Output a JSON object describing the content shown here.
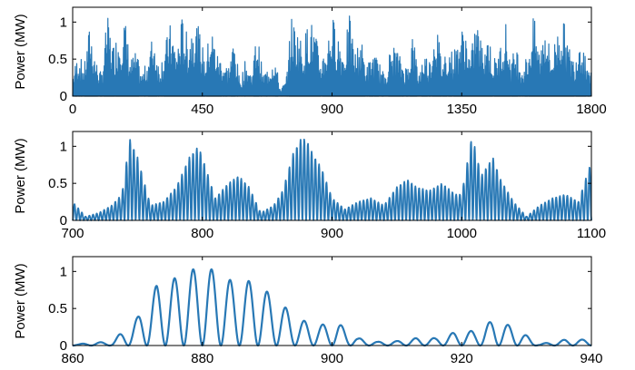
{
  "colors": {
    "series": "#2878b5",
    "axes": "#000000"
  },
  "chart_data": [
    {
      "type": "line",
      "title": "",
      "xlabel": "",
      "ylabel": "Power (MW)",
      "xlim": [
        0,
        1800
      ],
      "ylim": [
        0,
        1.2
      ],
      "xticks": [
        0,
        450,
        900,
        1350,
        1800
      ],
      "yticks": [
        0,
        0.5,
        1
      ],
      "xtick_labels": [
        "0",
        "450",
        "900",
        "1350",
        "1800"
      ],
      "ytick_labels": [
        "0",
        "0.5",
        "1"
      ],
      "grid": false,
      "series": [
        {
          "values_description_omitted": true,
          "x": [
            0,
            20,
            40,
            60,
            80,
            100,
            120,
            140,
            160,
            180,
            200,
            220,
            240,
            260,
            280,
            300,
            320,
            340,
            360,
            380,
            400,
            420,
            440,
            460,
            480,
            500,
            520,
            540,
            560,
            580,
            600,
            620,
            640,
            660,
            680,
            700,
            720,
            740,
            760,
            780,
            800,
            820,
            840,
            860,
            880,
            900,
            920,
            940,
            960,
            980,
            1000,
            1020,
            1040,
            1060,
            1080,
            1100,
            1120,
            1140,
            1160,
            1180,
            1200,
            1220,
            1240,
            1260,
            1280,
            1300,
            1320,
            1340,
            1360,
            1380,
            1400,
            1420,
            1440,
            1460,
            1480,
            1500,
            1520,
            1540,
            1560,
            1580,
            1600,
            1620,
            1640,
            1660,
            1680,
            1700,
            1720,
            1740,
            1760,
            1780,
            1800
          ],
          "y": [
            0.3,
            0.6,
            0.4,
            1.0,
            0.5,
            0.3,
            1.1,
            0.7,
            0.9,
            1.1,
            0.5,
            0.6,
            0.3,
            0.5,
            0.9,
            0.4,
            0.7,
            1.0,
            0.6,
            1.1,
            0.8,
            1.1,
            0.9,
            0.5,
            1.0,
            0.6,
            0.5,
            0.4,
            0.8,
            0.2,
            0.5,
            0.3,
            0.9,
            0.3,
            0.4,
            0.6,
            0.1,
            0.2,
            1.1,
            0.9,
            0.7,
            1.1,
            0.9,
            0.5,
            0.7,
            1.1,
            0.9,
            0.6,
            1.1,
            0.6,
            0.8,
            0.4,
            0.6,
            0.5,
            0.3,
            0.6,
            0.7,
            0.5,
            0.4,
            0.9,
            0.3,
            0.6,
            0.5,
            1.1,
            0.5,
            0.7,
            0.6,
            0.8,
            1.0,
            0.5,
            1.1,
            0.7,
            0.9,
            0.5,
            0.6,
            1.1,
            0.5,
            0.7,
            0.4,
            0.6,
            1.1,
            0.6,
            1.1,
            0.5,
            0.9,
            1.1,
            0.7,
            0.5,
            0.9,
            0.6,
            0.3
          ]
        }
      ]
    },
    {
      "type": "line",
      "title": "",
      "xlabel": "",
      "ylabel": "Power (MW)",
      "xlim": [
        700,
        1100
      ],
      "ylim": [
        0,
        1.2
      ],
      "xticks": [
        700,
        800,
        900,
        1000,
        1100
      ],
      "yticks": [
        0,
        0.5,
        1
      ],
      "xtick_labels": [
        "700",
        "800",
        "900",
        "1000",
        "1100"
      ],
      "ytick_labels": [
        "0",
        "0.5",
        "1"
      ],
      "grid": false,
      "series": [
        {
          "x": [
            700,
            710,
            720,
            730,
            738,
            744,
            750,
            760,
            770,
            780,
            790,
            797,
            800,
            810,
            820,
            828,
            836,
            845,
            855,
            862,
            870,
            876,
            880,
            885,
            892,
            900,
            910,
            920,
            930,
            940,
            950,
            958,
            965,
            975,
            985,
            995,
            1000,
            1008,
            1015,
            1024,
            1030,
            1040,
            1050,
            1060,
            1070,
            1080,
            1090,
            1100
          ],
          "y": [
            0.25,
            0.05,
            0.1,
            0.2,
            0.35,
            1.1,
            0.85,
            0.2,
            0.25,
            0.45,
            0.85,
            1.0,
            0.85,
            0.3,
            0.5,
            0.6,
            0.45,
            0.1,
            0.2,
            0.4,
            0.9,
            1.1,
            1.1,
            0.9,
            0.7,
            0.3,
            0.15,
            0.25,
            0.3,
            0.2,
            0.45,
            0.55,
            0.45,
            0.4,
            0.5,
            0.35,
            0.35,
            1.15,
            0.6,
            0.85,
            0.55,
            0.25,
            0.05,
            0.2,
            0.3,
            0.35,
            0.25,
            0.8
          ]
        }
      ]
    },
    {
      "type": "line",
      "title": "",
      "xlabel": "",
      "ylabel": "Power (MW)",
      "xlim": [
        860,
        940
      ],
      "ylim": [
        0,
        1.2
      ],
      "xticks": [
        860,
        880,
        900,
        920,
        940
      ],
      "yticks": [
        0,
        0.5,
        1
      ],
      "xtick_labels": [
        "860",
        "880",
        "900",
        "920",
        "940"
      ],
      "ytick_labels": [
        "0",
        "0.5",
        "1"
      ],
      "grid": false,
      "series": [
        {
          "x": [
            861,
            863,
            866,
            870,
            873,
            877,
            880,
            885,
            888,
            891,
            895,
            898,
            901,
            904,
            907,
            910,
            913,
            916,
            919,
            922,
            925,
            928,
            932,
            936
          ],
          "y": [
            0.02,
            0.04,
            0.05,
            0.38,
            0.82,
            0.95,
            1.1,
            0.85,
            0.88,
            0.65,
            0.35,
            0.28,
            0.3,
            0.1,
            0.05,
            0.06,
            0.1,
            0.1,
            0.18,
            0.2,
            0.35,
            0.25,
            0.02,
            0.08
          ]
        }
      ]
    }
  ]
}
